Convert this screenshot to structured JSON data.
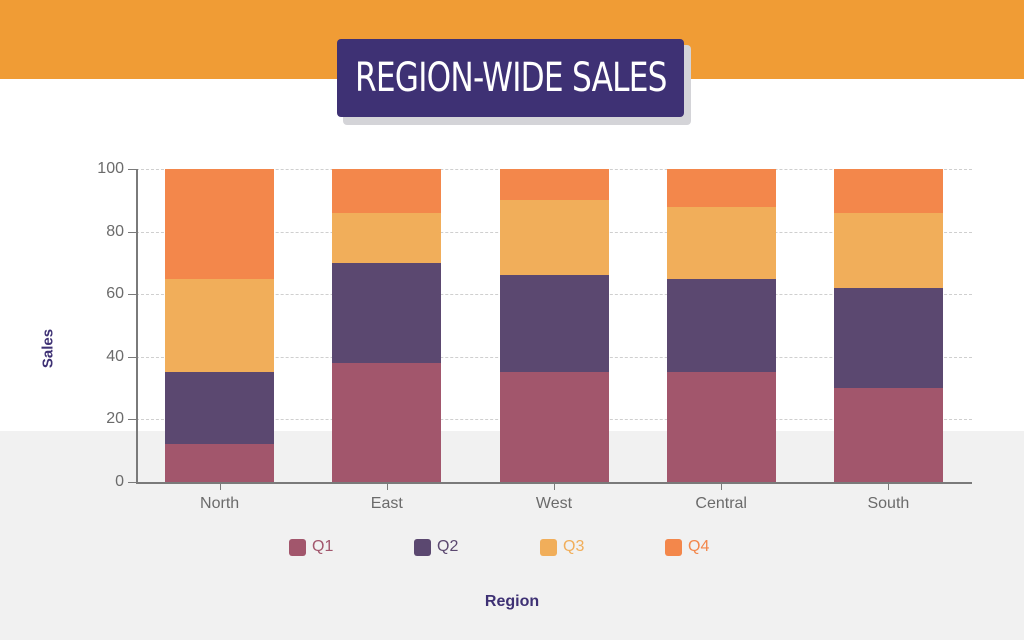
{
  "title": "REGION-WIDE SALES",
  "colors": {
    "band_top": "#f09c35",
    "title_bg": "#3e3174",
    "Q1": "#a2566c",
    "Q2": "#5b4870",
    "Q3": "#f1ae5a",
    "Q4": "#f3874b"
  },
  "chart_data": {
    "type": "bar",
    "stacked": true,
    "title": "REGION-WIDE SALES",
    "xlabel": "Region",
    "ylabel": "Sales",
    "ylim": [
      0,
      100
    ],
    "yticks": [
      0,
      20,
      40,
      60,
      80,
      100
    ],
    "grid": true,
    "legend_position": "bottom",
    "categories": [
      "North",
      "East",
      "West",
      "Central",
      "South"
    ],
    "series": [
      {
        "name": "Q1",
        "color": "#a2566c",
        "values": [
          12,
          38,
          35,
          35,
          30
        ]
      },
      {
        "name": "Q2",
        "color": "#5b4870",
        "values": [
          23,
          32,
          31,
          30,
          32
        ]
      },
      {
        "name": "Q3",
        "color": "#f1ae5a",
        "values": [
          30,
          16,
          24,
          23,
          24
        ]
      },
      {
        "name": "Q4",
        "color": "#f3874b",
        "values": [
          35,
          14,
          10,
          12,
          14
        ]
      }
    ]
  }
}
